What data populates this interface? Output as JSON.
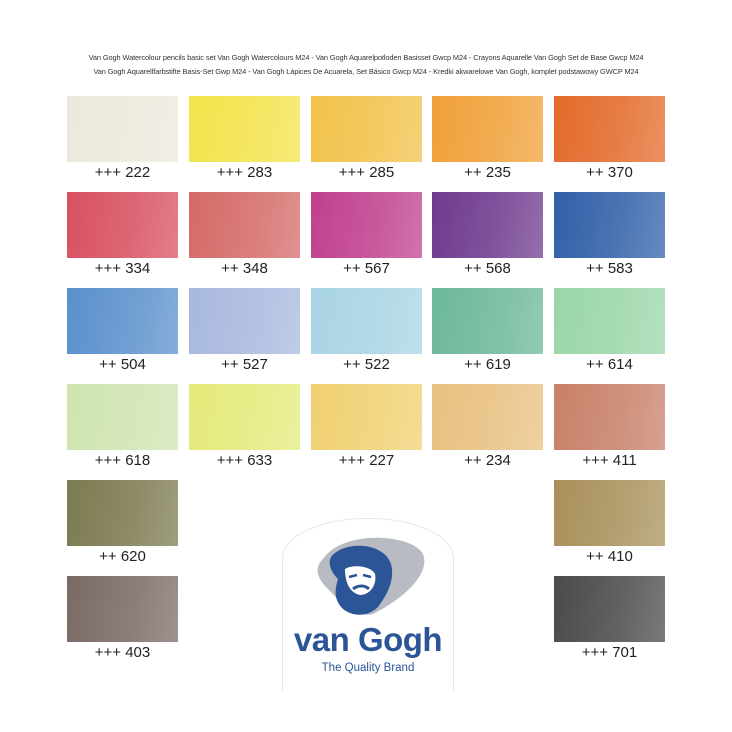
{
  "header": {
    "line1": "Van Gogh Watercolour pencils basic set Van Gogh Watercolours M24 - Van Gogh Aquarelpotloden Basisset Gwcp M24 - Crayons Aquarelle Van Gogh Set de Base Gwcp M24",
    "line2": "Van Gogh Aquarellfarbstifte Basis-Set Gwp M24 - Van Gogh Lápices De Acuarela, Set Básico Gwcp M24 - Kredki akwarelowe Van Gogh, komplet podstawowy GWCP M24"
  },
  "swatches": [
    {
      "label": "+++ 222",
      "color": "#ece8dc",
      "row": 0,
      "col": 0
    },
    {
      "label": "+++ 283",
      "color": "#f2e34a",
      "row": 0,
      "col": 1
    },
    {
      "label": "+++ 285",
      "color": "#f1c24a",
      "row": 0,
      "col": 2
    },
    {
      "label": "++ 235",
      "color": "#f0a038",
      "row": 0,
      "col": 3
    },
    {
      "label": "++ 370",
      "color": "#e36a2a",
      "row": 0,
      "col": 4
    },
    {
      "label": "+++ 334",
      "color": "#d85060",
      "row": 1,
      "col": 0
    },
    {
      "label": "++ 348",
      "color": "#d46a68",
      "row": 1,
      "col": 1
    },
    {
      "label": "++ 567",
      "color": "#c0408e",
      "row": 1,
      "col": 2
    },
    {
      "label": "++ 568",
      "color": "#6e3a8e",
      "row": 1,
      "col": 3
    },
    {
      "label": "++ 583",
      "color": "#3060a8",
      "row": 1,
      "col": 4
    },
    {
      "label": "++ 504",
      "color": "#5a90cc",
      "row": 2,
      "col": 0
    },
    {
      "label": "++ 527",
      "color": "#a8b8de",
      "row": 2,
      "col": 1
    },
    {
      "label": "++ 522",
      "color": "#a8d4e4",
      "row": 2,
      "col": 2
    },
    {
      "label": "++ 619",
      "color": "#6cb898",
      "row": 2,
      "col": 3
    },
    {
      "label": "++ 614",
      "color": "#9ad6a8",
      "row": 2,
      "col": 4
    },
    {
      "label": "+++ 618",
      "color": "#cfe4b0",
      "row": 3,
      "col": 0
    },
    {
      "label": "+++ 633",
      "color": "#e4ea7a",
      "row": 3,
      "col": 1
    },
    {
      "label": "+++ 227",
      "color": "#f0d070",
      "row": 3,
      "col": 2
    },
    {
      "label": "++ 234",
      "color": "#e8c080",
      "row": 3,
      "col": 3
    },
    {
      "label": "+++ 411",
      "color": "#c88068",
      "row": 3,
      "col": 4
    },
    {
      "label": "++ 620",
      "color": "#7c7a50",
      "row": 4,
      "col": 0
    },
    {
      "label": "++ 410",
      "color": "#a8905a",
      "row": 4,
      "col": 4
    },
    {
      "label": "+++ 403",
      "color": "#7a6a66",
      "row": 5,
      "col": 0
    },
    {
      "label": "+++ 701",
      "color": "#4a4a4c",
      "row": 5,
      "col": 4
    }
  ],
  "logo": {
    "brand": "van Gogh",
    "tagline": "The Quality Brand",
    "brand_color": "#2c5597",
    "shadow_color": "#b8bcc2"
  }
}
